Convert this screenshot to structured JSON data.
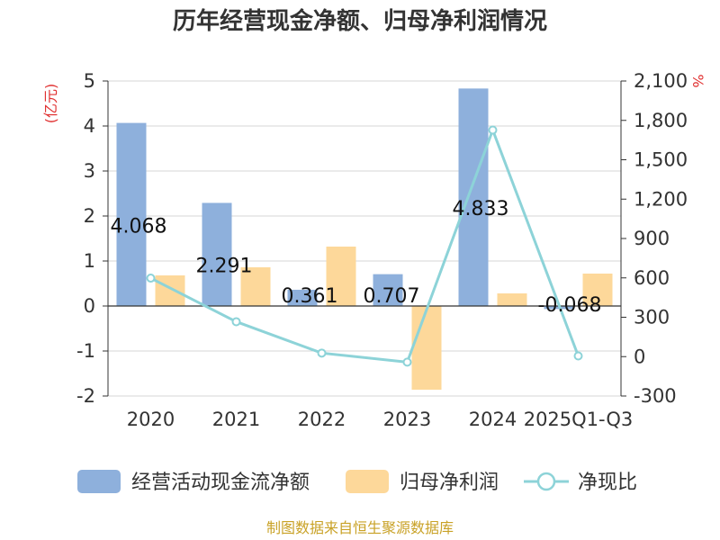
{
  "chart_data": {
    "type": "bar",
    "title": "历年经营现金净额、归母净利润情况",
    "left_unit": "(亿元)",
    "right_unit": "%",
    "categories": [
      "2020",
      "2021",
      "2022",
      "2023",
      "2024",
      "2025Q1-Q3"
    ],
    "left_axis": {
      "min": -2,
      "max": 5,
      "ticks": [
        "5",
        "4",
        "3",
        "2",
        "1",
        "0",
        "-1",
        "-2"
      ]
    },
    "right_axis": {
      "min": -300,
      "max": 2100,
      "ticks": [
        "2,100",
        "1,800",
        "1,500",
        "1,200",
        "900",
        "600",
        "300",
        "0",
        "-300"
      ]
    },
    "series": [
      {
        "name": "经营活动现金流净额",
        "type": "bar",
        "axis": "left",
        "color": "#8eb0dc",
        "values": [
          4.068,
          2.291,
          0.361,
          0.707,
          4.833,
          -0.068
        ],
        "labels": [
          "4.068",
          "2.291",
          "0.361",
          "0.707",
          "4.833",
          "-0.068"
        ]
      },
      {
        "name": "归母净利润",
        "type": "bar",
        "axis": "left",
        "color": "#fdd89a",
        "values": [
          0.68,
          0.86,
          1.32,
          -1.86,
          0.28,
          0.72
        ]
      },
      {
        "name": "净现比",
        "type": "line",
        "axis": "right",
        "color": "#8dd3d8",
        "values": [
          598,
          266,
          27,
          -42,
          1726,
          5
        ]
      }
    ],
    "grid": true,
    "legend": "bottom",
    "source": "制图数据来自恒生聚源数据库"
  }
}
